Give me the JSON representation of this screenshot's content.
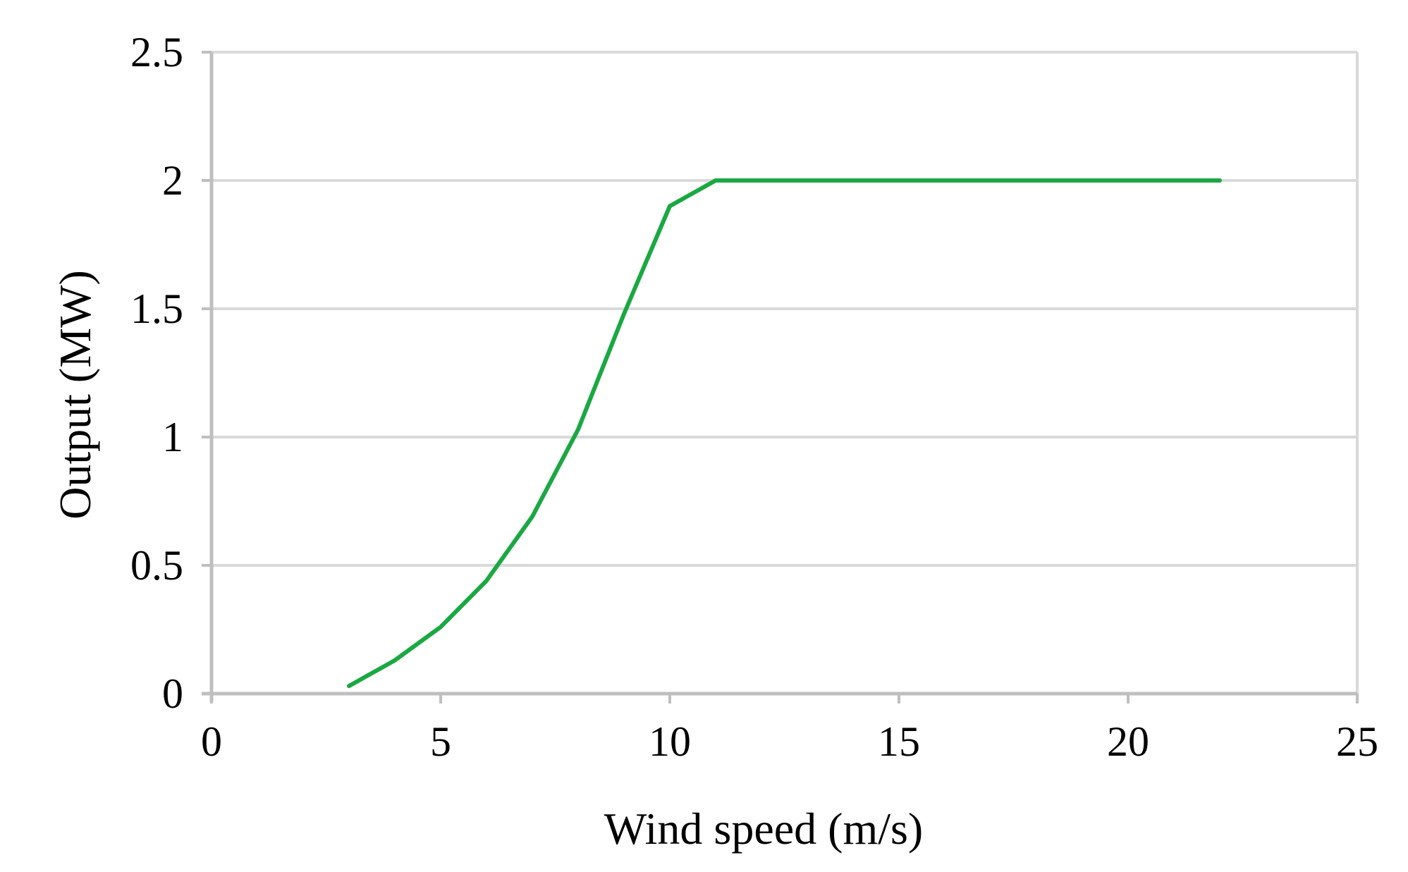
{
  "chart_data": {
    "type": "line",
    "xlabel": "Wind speed (m/s)",
    "ylabel": "Output (MW)",
    "xlim": [
      0,
      25
    ],
    "ylim": [
      0,
      2.5
    ],
    "x_ticks": [
      "0",
      "5",
      "10",
      "15",
      "20",
      "25"
    ],
    "y_ticks": [
      "0",
      "0.5",
      "1",
      "1.5",
      "2",
      "2.5"
    ],
    "grid": "horizontal",
    "legend": "none",
    "series": [
      {
        "color": "#1aa842",
        "x": [
          3,
          4,
          5,
          6,
          7,
          8,
          9,
          10,
          11,
          12,
          13,
          14,
          15,
          16,
          17,
          18,
          19,
          20,
          21,
          22
        ],
        "y": [
          0.03,
          0.13,
          0.26,
          0.44,
          0.69,
          1.03,
          1.48,
          1.9,
          2.0,
          2.0,
          2.0,
          2.0,
          2.0,
          2.0,
          2.0,
          2.0,
          2.0,
          2.0,
          2.0,
          2.0
        ]
      }
    ],
    "colors": {
      "grid": "#d9d9d9",
      "axis": "#bfbfbf",
      "line": "#1aa842"
    }
  }
}
